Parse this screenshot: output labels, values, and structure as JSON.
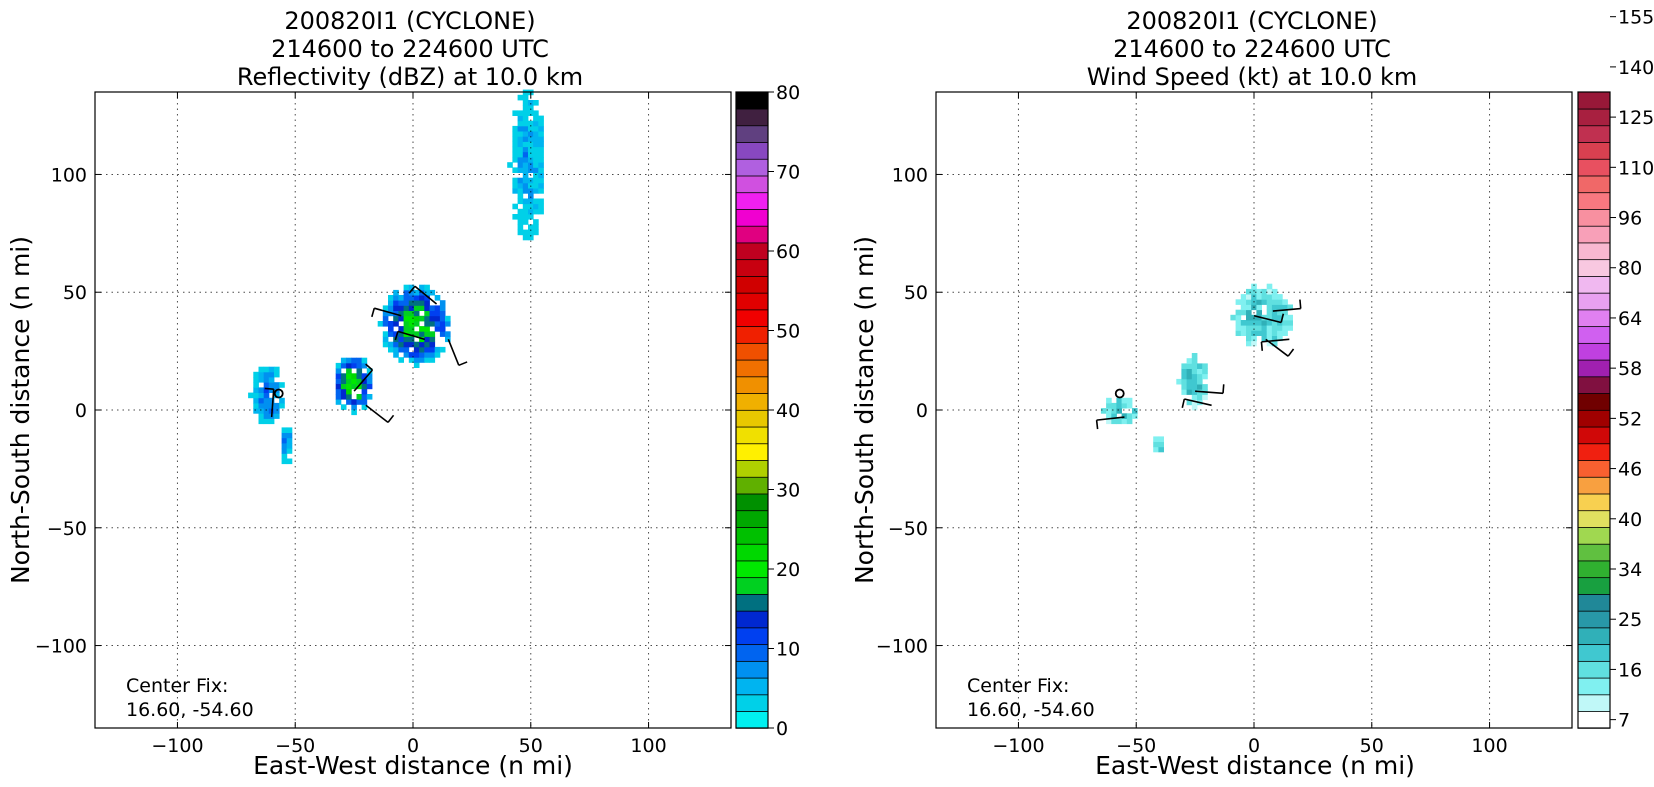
{
  "chart_data": [
    {
      "type": "heatmap",
      "title": [
        "200820I1 (CYCLONE)",
        "214600 to 224600 UTC",
        "Reflectivity (dBZ) at 10.0 km"
      ],
      "xlabel": "East-West distance (n mi)",
      "ylabel": "North-South distance (n mi)",
      "xlim": [
        -135,
        135
      ],
      "ylim": [
        -135,
        135
      ],
      "xticks": [
        -100,
        -50,
        0,
        50,
        100
      ],
      "yticks": [
        -100,
        -50,
        0,
        50,
        100
      ],
      "xtick_labels": [
        "−100",
        "−50",
        "0",
        "50",
        "100"
      ],
      "ytick_labels": [
        "−100",
        "−50",
        "0",
        "50",
        "100"
      ],
      "grid": true,
      "annotation": [
        "Center Fix:",
        "16.60, -54.60"
      ],
      "colorbar": {
        "min": 0,
        "max": 80,
        "tick_values": [
          0,
          10,
          20,
          30,
          40,
          50,
          60,
          70,
          80
        ],
        "tick_labels": [
          "0",
          "10",
          "20",
          "30",
          "40",
          "50",
          "60",
          "70",
          "80"
        ],
        "colors": [
          "#00f0f0",
          "#00d0e8",
          "#00b4f0",
          "#0090f0",
          "#0064f0",
          "#0040f0",
          "#0028d0",
          "#007080",
          "#00d020",
          "#00e800",
          "#00d800",
          "#00c000",
          "#00a800",
          "#009000",
          "#60b000",
          "#b0d000",
          "#fff000",
          "#f0e000",
          "#e8c800",
          "#f0b000",
          "#f09000",
          "#f07000",
          "#f05000",
          "#f02000",
          "#f00000",
          "#e00000",
          "#d00000",
          "#c80010",
          "#c00020",
          "#e00080",
          "#f000d0",
          "#f020f0",
          "#d050e0",
          "#b060e0",
          "#8848c0",
          "#604080",
          "#402040",
          "#000000"
        ]
      },
      "echo_regions": [
        {
          "x": [
            -70,
            -55
          ],
          "y": [
            -8,
            18
          ],
          "dbz": 8
        },
        {
          "x": [
            -58,
            -52
          ],
          "y": [
            -25,
            -5
          ],
          "dbz": 6
        },
        {
          "x": [
            -35,
            -18
          ],
          "y": [
            -2,
            22
          ],
          "dbz": 18
        },
        {
          "x": [
            -15,
            15
          ],
          "y": [
            18,
            52
          ],
          "dbz": 17
        },
        {
          "x": [
            40,
            55
          ],
          "y": [
            70,
            135
          ],
          "dbz": 5
        }
      ],
      "wind_barbs": [
        {
          "x": -60,
          "y": -3
        },
        {
          "x": -25,
          "y": 8
        },
        {
          "x": -20,
          "y": 2
        },
        {
          "x": -5,
          "y": 40
        },
        {
          "x": 10,
          "y": 45
        },
        {
          "x": 5,
          "y": 30
        },
        {
          "x": 15,
          "y": 30
        }
      ],
      "center_marker": {
        "x": -57,
        "y": 7
      }
    },
    {
      "type": "heatmap",
      "title": [
        "200820I1 (CYCLONE)",
        "214600 to 224600 UTC",
        "Wind Speed (kt) at 10.0 km"
      ],
      "xlabel": "East-West distance (n mi)",
      "ylabel": "North-South distance (n mi)",
      "xlim": [
        -135,
        135
      ],
      "ylim": [
        -135,
        135
      ],
      "xticks": [
        -100,
        -50,
        0,
        50,
        100
      ],
      "yticks": [
        -100,
        -50,
        0,
        50,
        100
      ],
      "xtick_labels": [
        "−100",
        "−50",
        "0",
        "50",
        "100"
      ],
      "ytick_labels": [
        "−100",
        "−50",
        "0",
        "50",
        "100"
      ],
      "grid": true,
      "annotation": [
        "Center Fix:",
        "16.60, -54.60"
      ],
      "colorbar": {
        "tick_labels": [
          "7",
          "16",
          "25",
          "34",
          "40",
          "46",
          "52",
          "58",
          "64",
          "80",
          "96",
          "110",
          "125",
          "140",
          "155"
        ],
        "tick_bins": [
          0,
          3,
          6,
          9,
          12,
          15,
          18,
          21,
          24,
          27,
          30,
          33,
          36,
          39,
          42
        ],
        "colors": [
          "#ffffff",
          "#c0f8f8",
          "#80f0f0",
          "#60e0e0",
          "#40c8d0",
          "#30b0b8",
          "#2898a8",
          "#208898",
          "#18a040",
          "#30b030",
          "#60c040",
          "#a0d850",
          "#e0e060",
          "#f8d050",
          "#f8a040",
          "#f86030",
          "#f02010",
          "#d00808",
          "#a00000",
          "#700000",
          "#801040",
          "#a020b0",
          "#c040e0",
          "#d060f0",
          "#e080f0",
          "#e8a0f0",
          "#f0b8f0",
          "#f8c8e0",
          "#f8b8d0",
          "#f8a0b8",
          "#f890a0",
          "#f87880",
          "#f06868",
          "#e85060",
          "#d84050",
          "#c03050",
          "#a82040",
          "#981838"
        ]
      },
      "wind_regions": [
        {
          "x": [
            -65,
            -50
          ],
          "y": [
            -8,
            5
          ],
          "kt": 10
        },
        {
          "x": [
            -33,
            -20
          ],
          "y": [
            0,
            22
          ],
          "kt": 14
        },
        {
          "x": [
            -10,
            15
          ],
          "y": [
            25,
            52
          ],
          "kt": 12
        },
        {
          "x": [
            -45,
            -40
          ],
          "y": [
            -20,
            -12
          ],
          "kt": 10
        }
      ],
      "wind_barbs": [
        {
          "x": -55,
          "y": -3
        },
        {
          "x": -25,
          "y": 8
        },
        {
          "x": -18,
          "y": 2
        },
        {
          "x": 0,
          "y": 40
        },
        {
          "x": 8,
          "y": 42
        },
        {
          "x": 5,
          "y": 30
        },
        {
          "x": 15,
          "y": 30
        }
      ],
      "center_marker": {
        "x": -57,
        "y": 7
      }
    }
  ]
}
